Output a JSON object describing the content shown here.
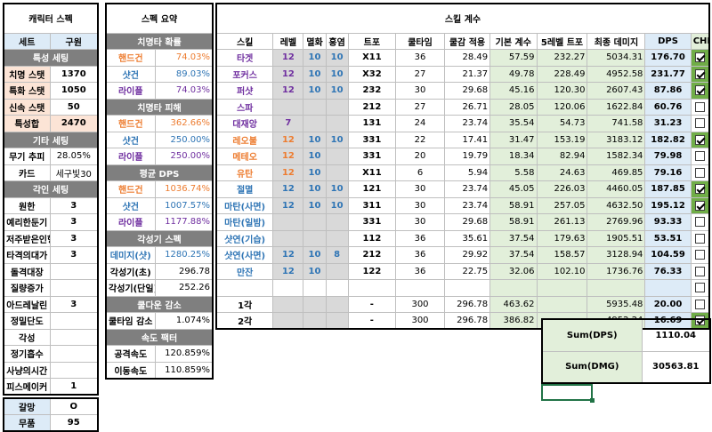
{
  "char_spec": {
    "title": "캐릭터 스펙",
    "set_label": "세트",
    "set_value": "구원",
    "stat_setting_header": "특성 세팅",
    "stats": [
      {
        "label": "치명 스탯",
        "value": "1370"
      },
      {
        "label": "특화 스탯",
        "value": "1050"
      },
      {
        "label": "신속 스탯",
        "value": "50"
      }
    ],
    "stat_sum_label": "특성합",
    "stat_sum_value": "2470",
    "etc_header": "기타 세팅",
    "weapon_label": "무기 추피",
    "weapon_value": "28.05%",
    "card_label": "카드",
    "card_value": "세구빛30",
    "engrave_header": "각인 세팅",
    "engravings": [
      {
        "label": "원한",
        "value": "3"
      },
      {
        "label": "예리한둔기",
        "value": "3"
      },
      {
        "label": "저주받은인형",
        "value": "3"
      },
      {
        "label": "타격의대가",
        "value": "3"
      },
      {
        "label": "돌격대장",
        "value": ""
      },
      {
        "label": "질량증가",
        "value": ""
      },
      {
        "label": "아드레날린",
        "value": "3"
      },
      {
        "label": "정밀단도",
        "value": ""
      },
      {
        "label": "각성",
        "value": ""
      },
      {
        "label": "정기흡수",
        "value": ""
      },
      {
        "label": "사냥의시간",
        "value": ""
      },
      {
        "label": "피스메이커",
        "value": "1"
      }
    ]
  },
  "extra": [
    {
      "label": "갈망",
      "value": "O"
    },
    {
      "label": "무품",
      "value": "95"
    }
  ],
  "summary": {
    "title": "스펙 요약",
    "crit_rate_header": "치명타 확률",
    "crit_rate": [
      {
        "label": "핸드건",
        "value": "74.03%"
      },
      {
        "label": "샷건",
        "value": "89.03%"
      },
      {
        "label": "라이플",
        "value": "74.03%"
      }
    ],
    "crit_dmg_header": "치명타 피해",
    "crit_dmg": [
      {
        "label": "핸드건",
        "value": "362.66%"
      },
      {
        "label": "샷건",
        "value": "250.00%"
      },
      {
        "label": "라이플",
        "value": "250.00%"
      }
    ],
    "avg_dps_header": "평균 DPS",
    "avg_dps": [
      {
        "label": "핸드건",
        "value": "1036.74%"
      },
      {
        "label": "샷건",
        "value": "1007.57%"
      },
      {
        "label": "라이플",
        "value": "1177.88%"
      }
    ],
    "awaken_header": "각성기 스펙",
    "awaken": [
      {
        "label": "데미지(샷)",
        "value": "1280.25%"
      },
      {
        "label": "각성기(초)",
        "value": "296.78"
      },
      {
        "label": "각성기(단일)",
        "value": "252.26"
      }
    ],
    "cooldown_header": "쿨다운 감소",
    "cooldown_label": "쿨타임 감소",
    "cooldown_value": "1.074%",
    "speed_header": "속도 팩터",
    "speed": [
      {
        "label": "공격속도",
        "value": "120.859%"
      },
      {
        "label": "이동속도",
        "value": "110.859%"
      }
    ]
  },
  "skills": {
    "title": "스킬 계수",
    "headers": [
      "스킬",
      "레벨",
      "멸화",
      "홍염",
      "트포",
      "쿨타임",
      "쿨감 적용",
      "기본 계수",
      "5레벨 트포",
      "최종 데미지",
      "DPS",
      "CHK"
    ],
    "rows": [
      {
        "name": "타겟",
        "c": "purple",
        "lv": "12",
        "m": "10",
        "h": "10",
        "tp": "X11",
        "cd": "36",
        "cda": "28.49",
        "base": "57.59",
        "tp5": "232.27",
        "fin": "5034.31",
        "dps": "176.70",
        "chk": true
      },
      {
        "name": "포커스",
        "c": "purple",
        "lv": "12",
        "m": "10",
        "h": "10",
        "tp": "X32",
        "cd": "27",
        "cda": "21.37",
        "base": "49.78",
        "tp5": "228.49",
        "fin": "4952.58",
        "dps": "231.77",
        "chk": true
      },
      {
        "name": "퍼샷",
        "c": "purple",
        "lv": "12",
        "m": "10",
        "h": "10",
        "tp": "232",
        "cd": "30",
        "cda": "29.68",
        "base": "45.16",
        "tp5": "120.30",
        "fin": "2607.43",
        "dps": "87.86",
        "chk": true
      },
      {
        "name": "스파",
        "c": "purple",
        "lv": "",
        "m": "",
        "h": "",
        "tp": "212",
        "cd": "27",
        "cda": "26.71",
        "base": "28.05",
        "tp5": "120.06",
        "fin": "1622.84",
        "dps": "60.76",
        "chk": false
      },
      {
        "name": "대재앙",
        "c": "purple",
        "lv": "7",
        "m": "",
        "h": "",
        "tp": "131",
        "cd": "24",
        "cda": "23.74",
        "base": "35.54",
        "tp5": "54.73",
        "fin": "741.58",
        "dps": "31.23",
        "chk": false
      },
      {
        "name": "레오불",
        "c": "orange",
        "lv": "12",
        "m": "10",
        "h": "10",
        "tp": "331",
        "cd": "22",
        "cda": "17.41",
        "base": "31.47",
        "tp5": "153.19",
        "fin": "3183.12",
        "dps": "182.82",
        "chk": true
      },
      {
        "name": "메테오",
        "c": "orange",
        "lv": "12",
        "m": "10",
        "h": "",
        "tp": "331",
        "cd": "20",
        "cda": "19.79",
        "base": "18.34",
        "tp5": "82.94",
        "fin": "1582.34",
        "dps": "79.98",
        "chk": false
      },
      {
        "name": "유탄",
        "c": "orange",
        "lv": "12",
        "m": "10",
        "h": "",
        "tp": "X11",
        "cd": "6",
        "cda": "5.94",
        "base": "5.58",
        "tp5": "24.63",
        "fin": "469.85",
        "dps": "79.16",
        "chk": false
      },
      {
        "name": "절멸",
        "c": "blue",
        "lv": "12",
        "m": "10",
        "h": "10",
        "tp": "121",
        "cd": "30",
        "cda": "23.74",
        "base": "45.05",
        "tp5": "226.03",
        "fin": "4460.05",
        "dps": "187.85",
        "chk": true
      },
      {
        "name": "마탄(사면)",
        "c": "blue",
        "lv": "12",
        "m": "10",
        "h": "10",
        "tp": "311",
        "cd": "30",
        "cda": "23.74",
        "base": "58.91",
        "tp5": "257.05",
        "fin": "4632.50",
        "dps": "195.12",
        "chk": true
      },
      {
        "name": "마탄(일밤)",
        "c": "blue",
        "lv": "",
        "m": "",
        "h": "",
        "tp": "331",
        "cd": "30",
        "cda": "29.68",
        "base": "58.91",
        "tp5": "261.13",
        "fin": "2769.96",
        "dps": "93.33",
        "chk": false
      },
      {
        "name": "샷연(기습)",
        "c": "blue",
        "lv": "",
        "m": "",
        "h": "",
        "tp": "112",
        "cd": "36",
        "cda": "35.61",
        "base": "37.54",
        "tp5": "179.63",
        "fin": "1905.51",
        "dps": "53.51",
        "chk": false
      },
      {
        "name": "샷연(사면)",
        "c": "blue",
        "lv": "12",
        "m": "10",
        "h": "8",
        "tp": "212",
        "cd": "36",
        "cda": "29.92",
        "base": "37.54",
        "tp5": "158.57",
        "fin": "3128.94",
        "dps": "104.59",
        "chk": false
      },
      {
        "name": "만잔",
        "c": "blue",
        "lv": "12",
        "m": "10",
        "h": "",
        "tp": "122",
        "cd": "36",
        "cda": "22.75",
        "base": "32.06",
        "tp5": "102.10",
        "fin": "1736.76",
        "dps": "76.33",
        "chk": false
      },
      {
        "name": "",
        "c": "",
        "lv": "",
        "m": "",
        "h": "",
        "tp": "",
        "cd": "",
        "cda": "",
        "base": "",
        "tp5": "",
        "fin": "",
        "dps": "",
        "chk": false
      },
      {
        "name": "1각",
        "c": "",
        "lv": "",
        "m": "",
        "h": "",
        "tp": "-",
        "cd": "300",
        "cda": "296.78",
        "base": "463.62",
        "tp5": "",
        "fin": "5935.48",
        "dps": "20.00",
        "chk": false
      },
      {
        "name": "2각",
        "c": "",
        "lv": "",
        "m": "",
        "h": "",
        "tp": "-",
        "cd": "300",
        "cda": "296.78",
        "base": "386.82",
        "tp5": "",
        "fin": "4952.24",
        "dps": "16.69",
        "chk": true
      }
    ],
    "sum_dps_label": "Sum(DPS)",
    "sum_dps_value": "1110.04",
    "sum_dmg_label": "Sum(DMG)",
    "sum_dmg_value": "30563.81"
  }
}
